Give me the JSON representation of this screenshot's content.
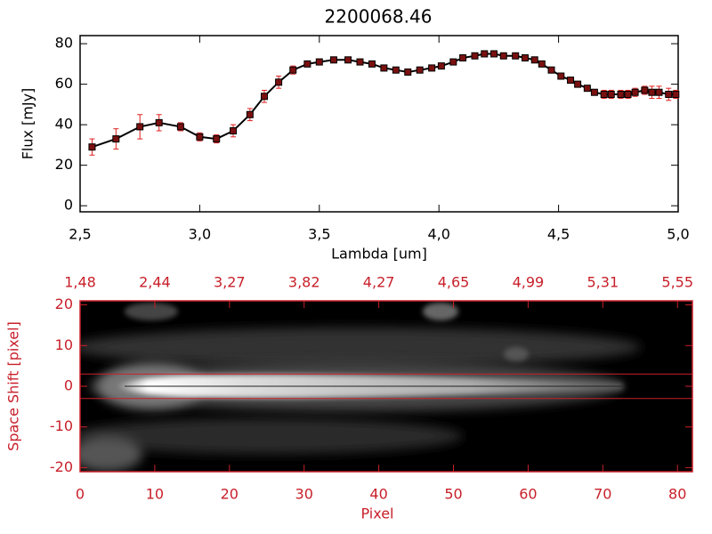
{
  "chart_data": [
    {
      "type": "line",
      "title": "2200068.46",
      "xlabel": "Lambda [um]",
      "ylabel": "Flux [mJy]",
      "x": [
        2.55,
        2.65,
        2.75,
        2.83,
        2.92,
        3.0,
        3.07,
        3.14,
        3.21,
        3.27,
        3.33,
        3.39,
        3.45,
        3.5,
        3.56,
        3.62,
        3.67,
        3.72,
        3.77,
        3.82,
        3.87,
        3.92,
        3.97,
        4.01,
        4.06,
        4.1,
        4.15,
        4.19,
        4.23,
        4.27,
        4.32,
        4.36,
        4.4,
        4.43,
        4.47,
        4.51,
        4.55,
        4.58,
        4.62,
        4.65,
        4.69,
        4.72,
        4.76,
        4.79,
        4.82,
        4.86,
        4.89,
        4.92,
        4.96,
        4.99
      ],
      "values": [
        29,
        33,
        39,
        41,
        39,
        34,
        33,
        37,
        45,
        54,
        61,
        67,
        70,
        71,
        72,
        72,
        71,
        70,
        68,
        67,
        66,
        67,
        68,
        69,
        71,
        73,
        74,
        75,
        75,
        74,
        74,
        73,
        72,
        70,
        67,
        64,
        62,
        60,
        58,
        56,
        55,
        55,
        55,
        55,
        56,
        57,
        56,
        56,
        55,
        55
      ],
      "errors": [
        4,
        5,
        6,
        4,
        2,
        2,
        2,
        3,
        3,
        3,
        3,
        2,
        1,
        1,
        1,
        1,
        1,
        1,
        1,
        1,
        1,
        1,
        1,
        1,
        1,
        1,
        1,
        1,
        1,
        1,
        1,
        1,
        1,
        1,
        1,
        1,
        1,
        1,
        1,
        1,
        2,
        2,
        2,
        2,
        2,
        2,
        3,
        3,
        3,
        2
      ],
      "color": "#000000",
      "marker_color": "#7a1010",
      "error_color": "#e02020",
      "xlim": [
        2.5,
        5.0
      ],
      "ylim": [
        -3,
        84
      ],
      "xticks": [
        {
          "value": 2.5,
          "label": "2,5"
        },
        {
          "value": 3.0,
          "label": "3,0"
        },
        {
          "value": 3.5,
          "label": "3,5"
        },
        {
          "value": 4.0,
          "label": "4,0"
        },
        {
          "value": 4.5,
          "label": "4,5"
        },
        {
          "value": 5.0,
          "label": "5,0"
        }
      ],
      "yticks": [
        0,
        20,
        40,
        60,
        80
      ]
    },
    {
      "type": "image",
      "xlabel": "Pixel",
      "ylabel": "Space Shift [pixel]",
      "color": "#c8202a",
      "xlim": [
        0,
        82
      ],
      "ylim": [
        -21,
        21
      ],
      "xticks": [
        0,
        10,
        20,
        30,
        40,
        50,
        60,
        70,
        80
      ],
      "x2ticks": [
        {
          "value": 0,
          "label": "1,48"
        },
        {
          "value": 10,
          "label": "2,44"
        },
        {
          "value": 20,
          "label": "3,27"
        },
        {
          "value": 30,
          "label": "3,82"
        },
        {
          "value": 40,
          "label": "4,27"
        },
        {
          "value": 50,
          "label": "4,65"
        },
        {
          "value": 60,
          "label": "4,99"
        },
        {
          "value": 70,
          "label": "5,31"
        },
        {
          "value": 80,
          "label": "5,55"
        }
      ],
      "yticks": [
        -20,
        -10,
        0,
        10,
        20
      ],
      "hlines": [
        -3,
        3
      ]
    }
  ]
}
